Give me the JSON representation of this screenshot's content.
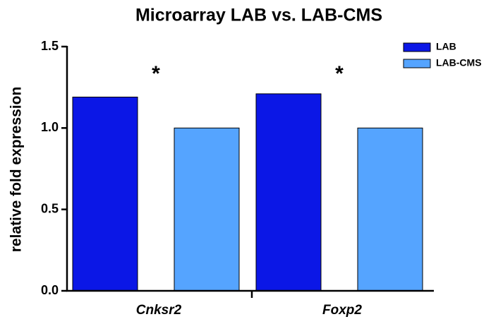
{
  "chart_data": {
    "type": "bar",
    "title": "Microarray LAB vs. LAB-CMS",
    "ylabel": "relative fold expression",
    "categories": [
      "Cnksr2",
      "Foxp2"
    ],
    "series": [
      {
        "name": "LAB",
        "color": "#0b17e6",
        "values": [
          1.19,
          1.21
        ]
      },
      {
        "name": "LAB-CMS",
        "color": "#55a4ff",
        "values": [
          1.0,
          1.0
        ]
      }
    ],
    "annotations": [
      {
        "text": "*",
        "category": 0
      },
      {
        "text": "*",
        "category": 1
      }
    ],
    "ylim": [
      0,
      1.5
    ],
    "yticks": [
      {
        "value": 0,
        "label": "0.0"
      },
      {
        "value": 0.5,
        "label": "0.5"
      },
      {
        "value": 1,
        "label": "1.0"
      },
      {
        "value": 1.5,
        "label": "1.5"
      }
    ],
    "legend": "top-right"
  }
}
